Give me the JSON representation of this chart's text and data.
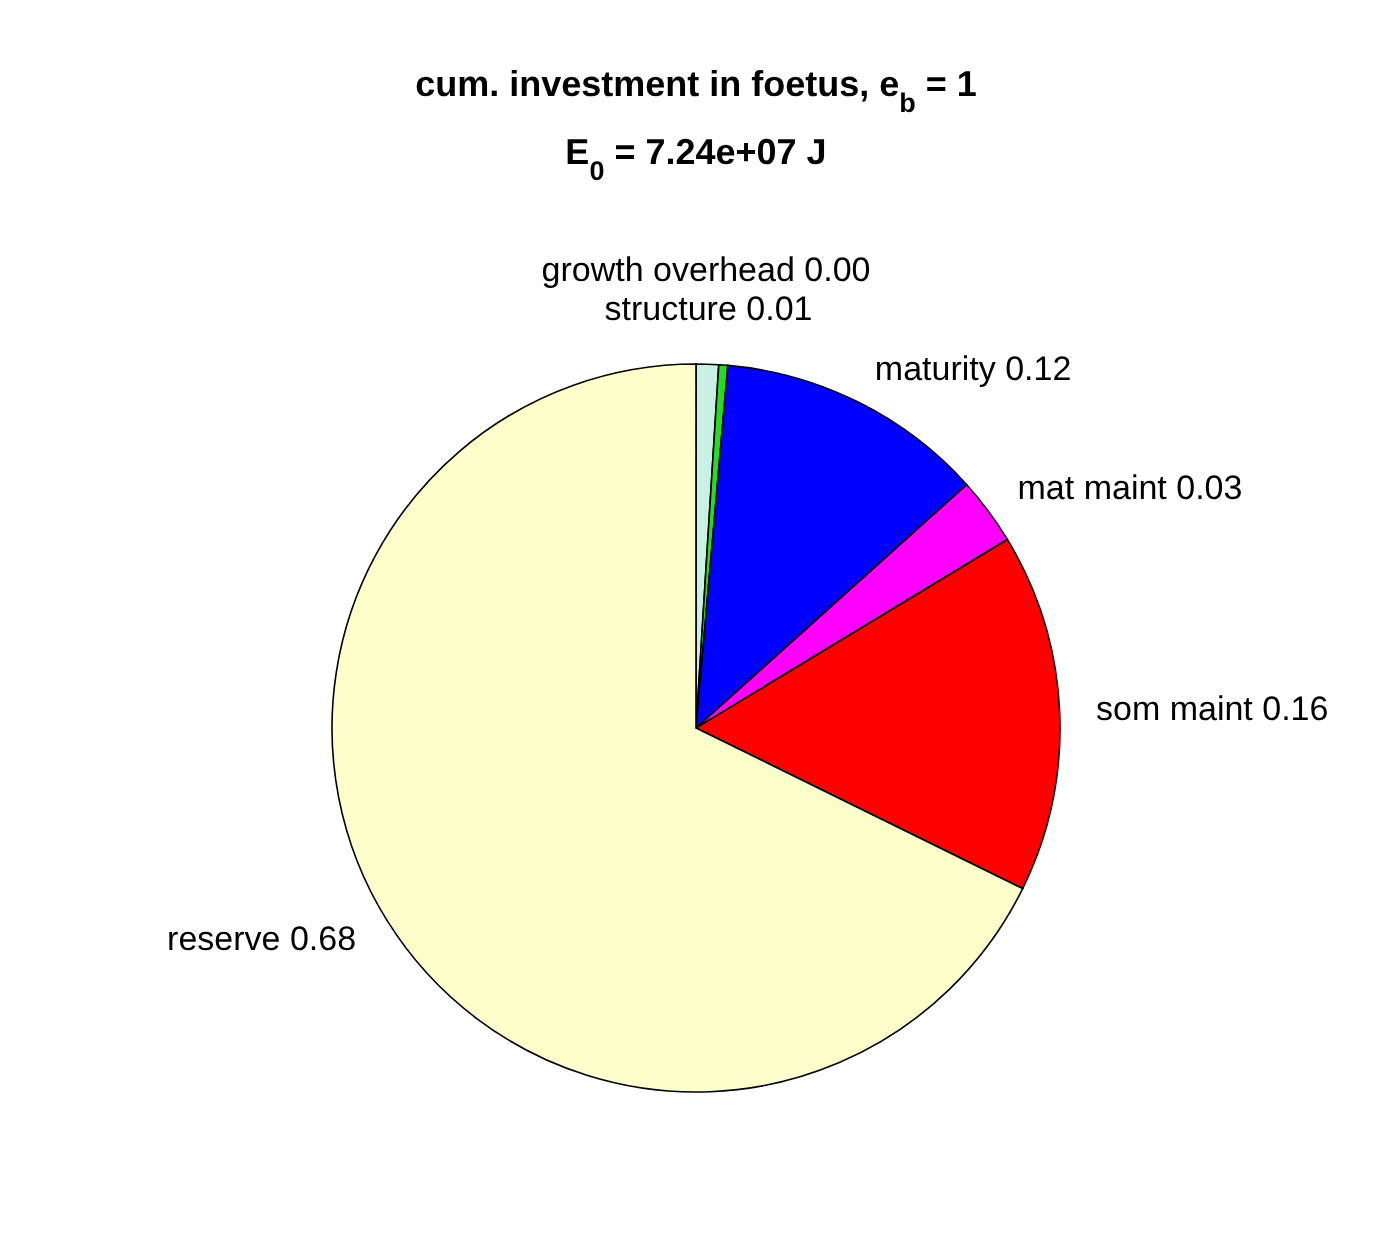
{
  "chart_data": {
    "type": "pie",
    "title": "cum. investment in foetus, e$_{b}$ = 1",
    "subtitle": "E$_{0}$ = 7.24e+07 J",
    "categories": [
      "structure",
      "growth overhead",
      "maturity",
      "mat maint",
      "som maint",
      "reserve"
    ],
    "values": [
      0.01,
      0.004,
      0.12,
      0.03,
      0.16,
      0.68
    ],
    "value_labels": [
      "0.01",
      "0.00",
      "0.12",
      "0.03",
      "0.16",
      "0.68"
    ],
    "colors": [
      "#c8f0e4",
      "#22dd22",
      "#0000ff",
      "#ff00ff",
      "#ff0000",
      "#ffffcc"
    ]
  }
}
